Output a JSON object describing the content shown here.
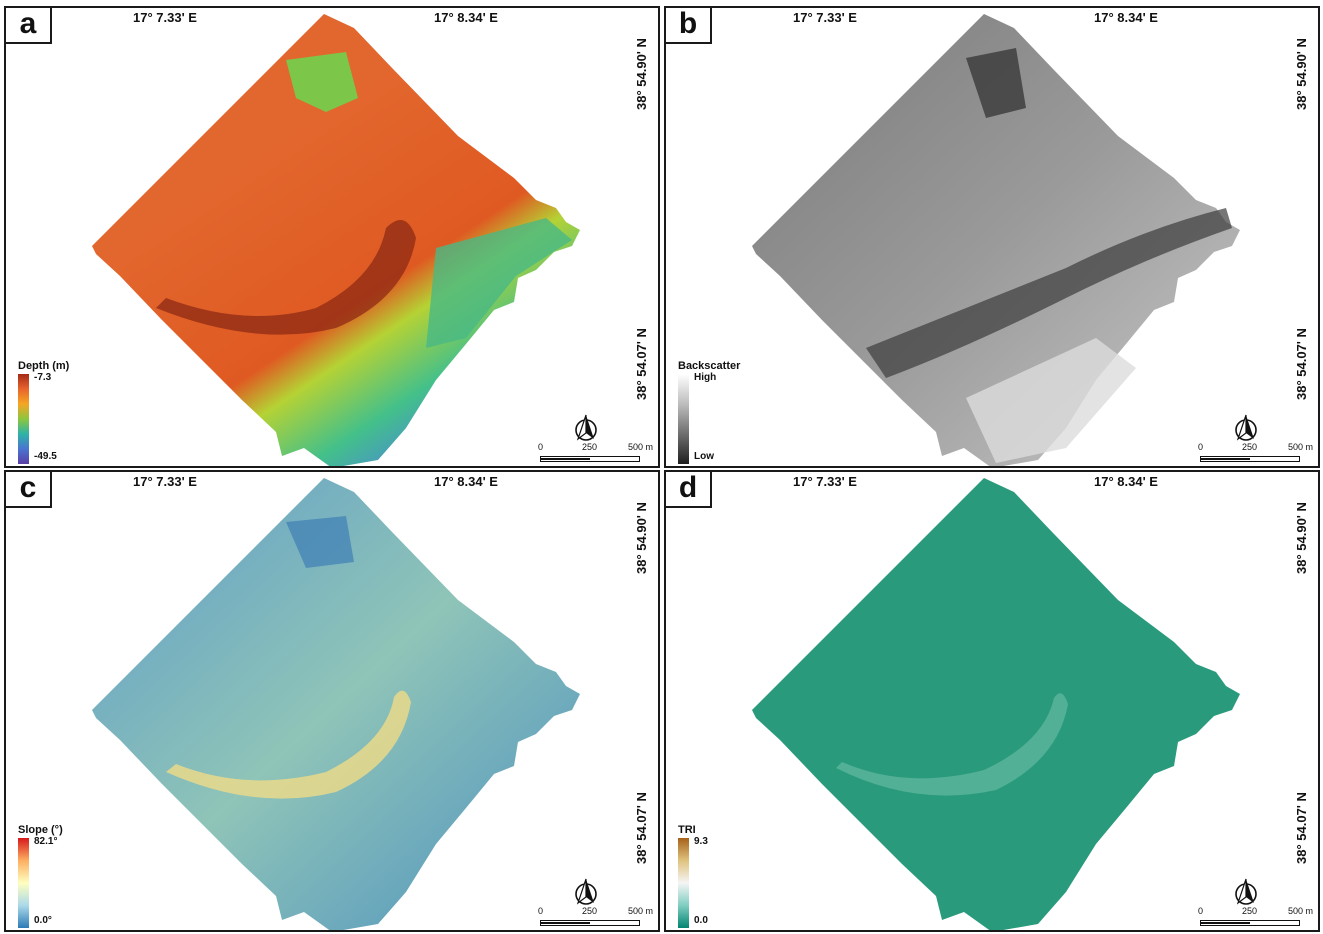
{
  "coordinates": {
    "lon_left": "17° 7.33' E",
    "lon_right": "17° 8.34' E",
    "lat_top": "38° 54.90' N",
    "lat_bottom": "38° 54.07' N"
  },
  "scale_bar": {
    "zero": "0",
    "mid": "250",
    "end": "500 m"
  },
  "panels": [
    {
      "letter": "a",
      "legend_title": "Depth (m)",
      "legend_max": "-7.3",
      "legend_min": "-49.5",
      "colormap": [
        "#a52a17",
        "#e8642c",
        "#f5a623",
        "#8cc63f",
        "#2eb3a8",
        "#4a74d0",
        "#5a3ea6"
      ]
    },
    {
      "letter": "b",
      "legend_title": "Backscatter",
      "legend_max": "High",
      "legend_min": "Low",
      "colormap": [
        "#ffffff",
        "#bdbdbd",
        "#6e6e6e",
        "#1e1e1e"
      ]
    },
    {
      "letter": "c",
      "legend_title": "Slope (°)",
      "legend_max": "82.1°",
      "legend_min": "0.0°",
      "colormap": [
        "#d7191c",
        "#fdae61",
        "#ffffbf",
        "#abd9e9",
        "#2c7bb6"
      ]
    },
    {
      "letter": "d",
      "legend_title": "TRI",
      "legend_max": "9.3",
      "legend_min": "0.0",
      "colormap": [
        "#a6611a",
        "#dfc27d",
        "#f5f5f5",
        "#80cdc1",
        "#018571"
      ]
    }
  ]
}
